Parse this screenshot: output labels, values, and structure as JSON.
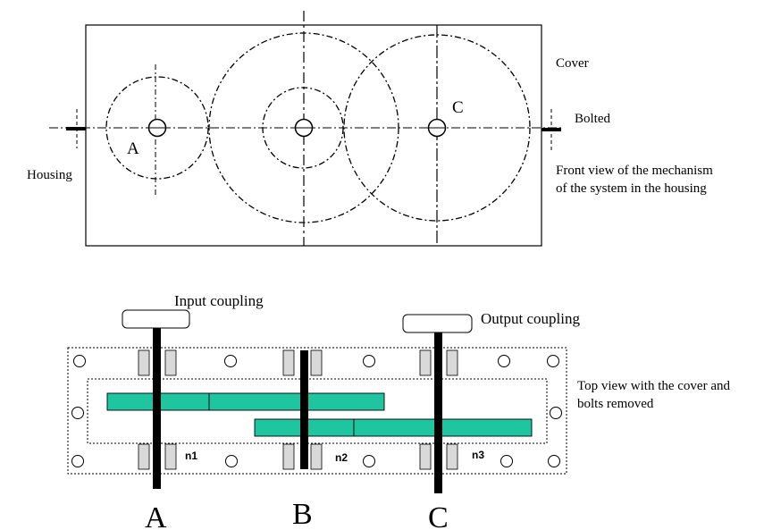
{
  "front_view": {
    "label_housing": "Housing",
    "label_cover": "Cover",
    "label_bolted": "Bolted",
    "label_gear_a": "A",
    "label_gear_c": "C",
    "caption_line1": "Front view of the mechanism",
    "caption_line2": "of the system in the housing"
  },
  "top_view": {
    "label_input_coupling": "Input coupling",
    "label_output_coupling": "Output coupling",
    "caption_line1": "Top view with the cover and",
    "caption_line2": "bolts removed",
    "speed_n1": "n1",
    "speed_n2": "n2",
    "speed_n3": "n3",
    "shaft_a": "A",
    "shaft_b": "B",
    "shaft_c": "C"
  },
  "colors": {
    "gear_fill": "#1ec59f",
    "bearing_fill": "#d9d9d9",
    "line": "#000000"
  }
}
